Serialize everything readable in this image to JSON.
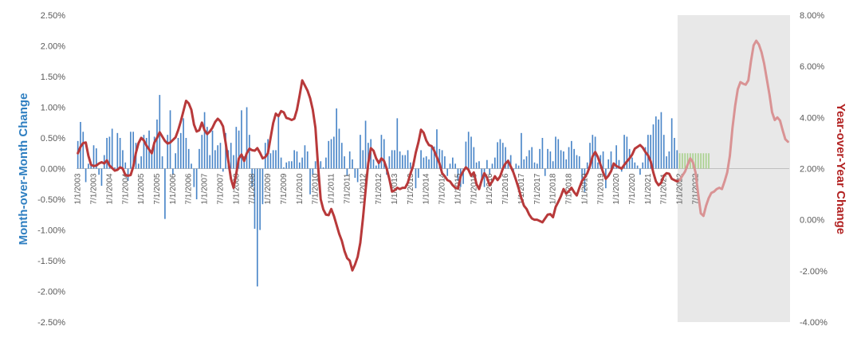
{
  "chart_data": {
    "type": "bar+line",
    "left_axis": {
      "label": "Month-over-Month Change",
      "ticks": [
        "2.50%",
        "2.00%",
        "1.50%",
        "1.00%",
        "0.50%",
        "0.00%",
        "-0.50%",
        "-1.00%",
        "-1.50%",
        "-2.00%",
        "-2.50%"
      ],
      "ylim": [
        -2.5,
        2.5
      ]
    },
    "right_axis": {
      "label": "Year-over-Year Change",
      "ticks": [
        "8.00%",
        "6.00%",
        "4.00%",
        "2.00%",
        "0.00%",
        "-2.00%",
        "-4.00%"
      ],
      "ylim": [
        -4,
        8
      ]
    },
    "x_tick_labels": [
      "1/1/2003",
      "7/1/2003",
      "1/1/2004",
      "7/1/2004",
      "1/1/2005",
      "7/1/2005",
      "1/1/2006",
      "7/1/2006",
      "1/1/2007",
      "7/1/2007",
      "1/1/2008",
      "7/1/2008",
      "1/1/2009",
      "7/1/2009",
      "1/1/2010",
      "7/1/2010",
      "1/1/2011",
      "7/1/2011",
      "1/1/2012",
      "7/1/2012",
      "1/1/2013",
      "7/1/2013",
      "1/1/2014",
      "7/1/2014",
      "1/1/2015",
      "7/1/2015",
      "1/1/2016",
      "7/1/2016",
      "1/1/2017",
      "7/1/2017",
      "1/1/2018",
      "7/1/2018",
      "1/1/2019",
      "7/1/2019",
      "1/1/2020",
      "7/1/2020",
      "1/1/2021",
      "7/1/2021",
      "1/1/2022",
      "7/1/2022"
    ],
    "forecast_start_month": "1/1/2022",
    "series": [
      {
        "type": "bar",
        "axis": "left",
        "color": "#4a86c8",
        "forecast_color": "#a9d18e",
        "values": [
          0.45,
          0.76,
          0.6,
          -0.22,
          0.08,
          0.1,
          0.38,
          0.33,
          -0.1,
          -0.28,
          0.22,
          0.5,
          0.52,
          0.65,
          0.02,
          0.58,
          0.5,
          0.3,
          0.1,
          -0.2,
          0.6,
          0.6,
          0.42,
          0.08,
          0.2,
          0.55,
          0.5,
          0.62,
          0.3,
          0.52,
          0.8,
          1.2,
          0.2,
          -0.82,
          0.55,
          0.95,
          -0.1,
          0.25,
          0.5,
          0.58,
          0.82,
          0.5,
          0.32,
          0.08,
          -0.3,
          -0.5,
          0.32,
          0.55,
          0.92,
          0.68,
          0.22,
          0.62,
          0.3,
          0.38,
          0.42,
          -0.05,
          0.58,
          0.3,
          0.42,
          0.22,
          0.68,
          0.62,
          0.95,
          0.2,
          1.0,
          0.55,
          -0.3,
          -0.98,
          -1.92,
          -1.0,
          -0.58,
          0.42,
          0.48,
          0.25,
          0.3,
          0.3,
          0.85,
          0.18,
          0.02,
          0.1,
          0.12,
          0.12,
          0.3,
          0.28,
          0.1,
          0.18,
          0.38,
          0.28,
          -0.42,
          -0.1,
          0.12,
          0.08,
          0.12,
          0.02,
          0.18,
          0.45,
          0.48,
          0.52,
          0.98,
          0.65,
          0.42,
          0.2,
          -0.12,
          0.28,
          0.15,
          -0.15,
          -0.22,
          0.55,
          0.3,
          0.78,
          0.42,
          0.48,
          0.15,
          0.05,
          0.12,
          0.55,
          0.48,
          -0.1,
          0.2,
          0.3,
          0.3,
          0.82,
          0.28,
          0.22,
          0.22,
          0.3,
          0.1,
          0.1,
          -0.32,
          -0.15,
          0.3,
          0.18,
          0.2,
          0.15,
          0.38,
          0.36,
          0.64,
          0.32,
          0.3,
          0.2,
          -0.12,
          0.08,
          0.18,
          0.08,
          -0.2,
          -0.3,
          -0.25,
          0.44,
          0.6,
          0.52,
          0.35,
          0.1,
          0.12,
          -0.22,
          -0.3,
          0.14,
          -0.1,
          0.08,
          0.18,
          0.43,
          0.48,
          0.42,
          0.35,
          0.15,
          0.22,
          -0.05,
          0.08,
          0.05,
          0.58,
          0.15,
          0.2,
          0.3,
          0.35,
          0.1,
          0.08,
          0.32,
          0.5,
          -0.12,
          0.32,
          0.28,
          0.12,
          0.52,
          0.48,
          0.3,
          0.28,
          0.15,
          0.35,
          0.45,
          0.32,
          0.22,
          0.2,
          -0.25,
          -0.38,
          0.1,
          0.42,
          0.55,
          0.52,
          0.1,
          0.22,
          0.28,
          -0.32,
          0.15,
          0.28,
          0.05,
          0.38,
          0.14,
          -0.05,
          0.55,
          0.52,
          0.32,
          0.18,
          0.1,
          0.05,
          -0.1,
          0.1,
          0.35,
          0.55,
          0.55,
          0.72,
          0.85,
          0.8,
          0.92,
          0.55,
          0.2,
          0.28,
          0.82,
          0.5,
          0.3,
          0.25,
          0.25,
          0.25,
          0.25,
          0.25,
          0.25,
          0.25,
          0.25,
          0.25,
          0.25,
          0.25,
          0.25
        ]
      },
      {
        "type": "line",
        "axis": "right",
        "color": "#b8393a",
        "forecast_color": "#d99394",
        "values": [
          2.6,
          2.85,
          3.0,
          3.02,
          2.5,
          2.15,
          2.1,
          2.12,
          2.2,
          2.25,
          2.2,
          2.32,
          2.12,
          2.02,
          1.92,
          1.95,
          2.05,
          2.0,
          1.75,
          1.72,
          1.75,
          2.08,
          2.62,
          3.0,
          3.2,
          3.1,
          2.9,
          2.75,
          2.6,
          3.02,
          3.2,
          3.42,
          3.25,
          3.08,
          2.98,
          3.02,
          3.12,
          3.22,
          3.5,
          3.85,
          4.25,
          4.65,
          4.55,
          4.3,
          3.72,
          3.45,
          3.5,
          3.8,
          3.5,
          3.35,
          3.45,
          3.6,
          3.82,
          3.95,
          3.85,
          3.65,
          3.0,
          2.3,
          1.6,
          1.25,
          1.8,
          2.4,
          2.55,
          2.3,
          2.6,
          2.78,
          2.72,
          2.7,
          2.8,
          2.62,
          2.4,
          2.45,
          2.6,
          3.2,
          3.78,
          4.15,
          4.05,
          4.25,
          4.2,
          3.98,
          3.95,
          3.9,
          3.95,
          4.3,
          4.85,
          5.45,
          5.25,
          5.05,
          4.75,
          4.3,
          3.6,
          2.1,
          0.8,
          0.4,
          0.2,
          0.18,
          0.42,
          0.15,
          -0.2,
          -0.55,
          -0.82,
          -1.22,
          -1.5,
          -1.6,
          -1.98,
          -1.75,
          -1.45,
          -0.9,
          0.05,
          1.15,
          2.2,
          2.8,
          2.7,
          2.4,
          2.22,
          2.4,
          2.3,
          2.0,
          1.6,
          1.1,
          1.15,
          1.25,
          1.2,
          1.25,
          1.25,
          1.45,
          1.8,
          2.1,
          2.62,
          3.02,
          3.52,
          3.4,
          3.1,
          2.92,
          2.88,
          2.7,
          2.45,
          2.2,
          1.82,
          1.7,
          1.55,
          1.5,
          1.35,
          1.25,
          1.22,
          1.7,
          1.9,
          2.05,
          1.95,
          1.72,
          1.85,
          1.4,
          1.2,
          1.55,
          1.82,
          1.65,
          1.35,
          1.5,
          1.7,
          1.55,
          1.7,
          2.0,
          2.2,
          2.3,
          2.08,
          1.85,
          1.55,
          1.22,
          0.85,
          0.55,
          0.42,
          0.2,
          0.05,
          0.0,
          0.0,
          -0.05,
          -0.1,
          0.05,
          0.2,
          0.22,
          0.1,
          0.5,
          0.7,
          0.92,
          1.2,
          1.02,
          1.12,
          1.25,
          1.08,
          0.95,
          1.25,
          1.52,
          1.65,
          1.82,
          2.1,
          2.48,
          2.65,
          2.45,
          2.15,
          1.85,
          1.6,
          1.72,
          1.9,
          2.2,
          2.1,
          2.05,
          2.0,
          2.15,
          2.28,
          2.4,
          2.55,
          2.78,
          2.85,
          2.92,
          2.82,
          2.65,
          2.52,
          2.28,
          1.85,
          1.5,
          1.35,
          1.45,
          1.72,
          1.82,
          1.8,
          1.6,
          1.55,
          1.5,
          1.55,
          1.72,
          1.88,
          2.15,
          2.4,
          2.25,
          1.85,
          1.0,
          0.25,
          0.15,
          0.55,
          0.85,
          1.05,
          1.1,
          1.2,
          1.25,
          1.2,
          1.5,
          1.85,
          2.5,
          3.6,
          4.45,
          5.1,
          5.38,
          5.32,
          5.28,
          5.45,
          6.2,
          6.82,
          7.0,
          6.85,
          6.55,
          6.1,
          5.5,
          4.9,
          4.2,
          3.9,
          4.0,
          3.88,
          3.5,
          3.15,
          3.05
        ]
      }
    ]
  }
}
